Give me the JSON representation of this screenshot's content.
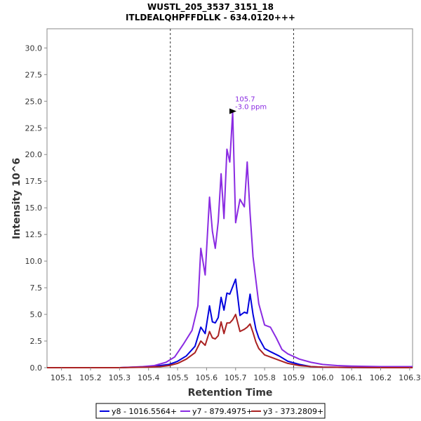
{
  "chart_data": {
    "type": "line",
    "title": "WUSTL_205_3537_3151_18",
    "subtitle": "ITLDEALQHPFFDLLK - 634.0120+++",
    "xlabel": "Retention Time",
    "ylabel": "Intensity 10^6",
    "xlim": [
      105.05,
      106.31
    ],
    "ylim": [
      0,
      31.8
    ],
    "x_ticks": [
      "105.1",
      "105.2",
      "105.3",
      "105.4",
      "105.5",
      "105.6",
      "105.7",
      "105.8",
      "105.9",
      "106.0",
      "106.1",
      "106.2",
      "106.3"
    ],
    "y_ticks": [
      "0.0",
      "2.5",
      "5.0",
      "7.5",
      "10.0",
      "12.5",
      "15.0",
      "17.5",
      "20.0",
      "22.5",
      "25.0",
      "27.5",
      "30.0"
    ],
    "vlines": [
      105.475,
      105.9
    ],
    "annotation": {
      "x": 105.715,
      "y": 24.0,
      "line1": "105.7",
      "line2": "-3.0 ppm",
      "color": "#8a2be2"
    },
    "legend_position": "bottom",
    "series": [
      {
        "name": "y8 - 1016.5564+",
        "color": "#0000dd",
        "x": [
          105.05,
          105.3,
          105.4,
          105.44,
          105.47,
          105.5,
          105.53,
          105.56,
          105.58,
          105.595,
          105.61,
          105.62,
          105.63,
          105.64,
          105.65,
          105.66,
          105.67,
          105.68,
          105.69,
          105.7,
          105.715,
          105.73,
          105.74,
          105.75,
          105.76,
          105.77,
          105.78,
          105.8,
          105.82,
          105.85,
          105.88,
          105.92,
          105.96,
          106.0,
          106.1,
          106.2,
          106.31
        ],
        "values": [
          0.0,
          0.0,
          0.1,
          0.2,
          0.3,
          0.6,
          1.1,
          2.0,
          3.8,
          3.2,
          5.8,
          4.3,
          4.2,
          4.7,
          6.6,
          5.4,
          7.0,
          6.9,
          7.6,
          8.3,
          4.9,
          5.2,
          5.1,
          6.9,
          5.0,
          3.6,
          2.8,
          1.8,
          1.5,
          1.1,
          0.6,
          0.3,
          0.1,
          0.05,
          0.02,
          0.0,
          0.0
        ]
      },
      {
        "name": "y7 - 879.4975+",
        "color": "#8a2be2",
        "x": [
          105.05,
          105.3,
          105.38,
          105.42,
          105.46,
          105.49,
          105.52,
          105.55,
          105.57,
          105.58,
          105.595,
          105.61,
          105.62,
          105.63,
          105.64,
          105.65,
          105.66,
          105.67,
          105.68,
          105.69,
          105.7,
          105.715,
          105.73,
          105.74,
          105.75,
          105.76,
          105.77,
          105.78,
          105.8,
          105.82,
          105.84,
          105.86,
          105.88,
          105.92,
          105.96,
          106.0,
          106.05,
          106.1,
          106.2,
          106.31
        ],
        "values": [
          0.0,
          0.0,
          0.1,
          0.2,
          0.5,
          1.0,
          2.2,
          3.5,
          5.8,
          11.2,
          8.7,
          16.0,
          12.8,
          11.2,
          13.7,
          18.2,
          14.0,
          20.5,
          19.3,
          24.0,
          13.6,
          15.8,
          15.1,
          19.3,
          14.5,
          10.4,
          8.2,
          6.0,
          4.0,
          3.8,
          2.8,
          1.7,
          1.3,
          0.8,
          0.5,
          0.3,
          0.2,
          0.15,
          0.1,
          0.1
        ]
      },
      {
        "name": "y3 - 373.2809+",
        "color": "#aa2222",
        "x": [
          105.05,
          105.3,
          105.4,
          105.44,
          105.47,
          105.5,
          105.53,
          105.56,
          105.58,
          105.595,
          105.61,
          105.62,
          105.63,
          105.64,
          105.65,
          105.66,
          105.67,
          105.68,
          105.69,
          105.7,
          105.715,
          105.73,
          105.74,
          105.75,
          105.76,
          105.77,
          105.78,
          105.8,
          105.82,
          105.85,
          105.88,
          105.92,
          105.96,
          106.0,
          106.1,
          106.2,
          106.31
        ],
        "values": [
          0.0,
          0.0,
          0.05,
          0.1,
          0.2,
          0.4,
          0.8,
          1.4,
          2.5,
          2.1,
          3.4,
          2.8,
          2.7,
          3.0,
          4.3,
          3.2,
          4.2,
          4.2,
          4.5,
          5.0,
          3.4,
          3.6,
          3.8,
          4.1,
          3.3,
          2.4,
          1.8,
          1.2,
          1.0,
          0.7,
          0.4,
          0.2,
          0.1,
          0.05,
          0.02,
          0.0,
          0.0
        ]
      }
    ]
  }
}
